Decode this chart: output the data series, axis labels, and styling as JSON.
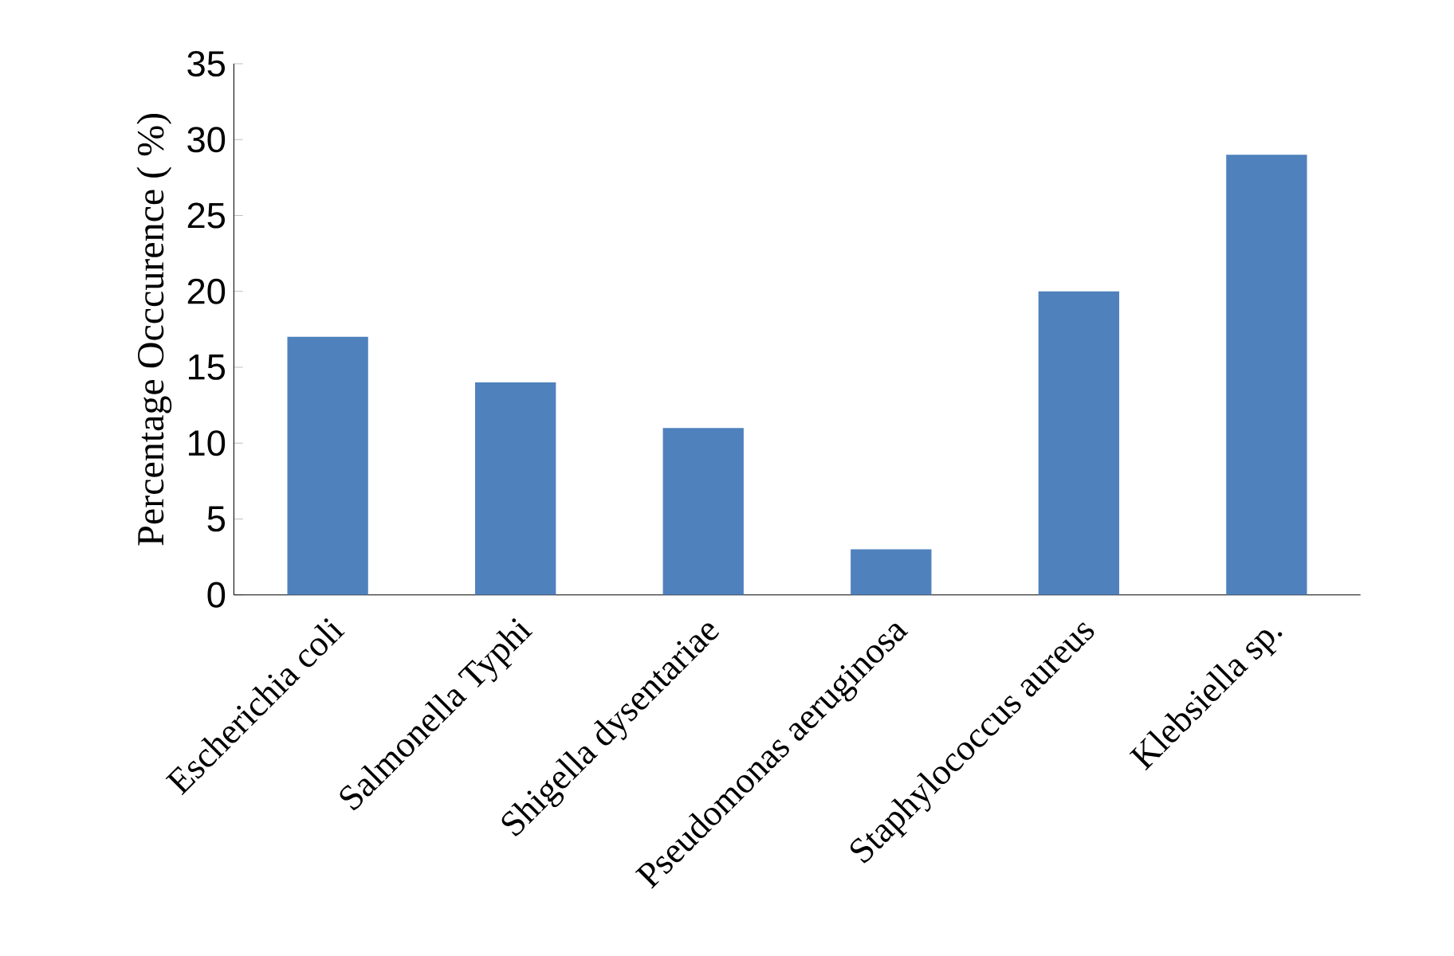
{
  "chart_data": {
    "type": "bar",
    "ylabel": "Percentage Occcurence ( %)",
    "categories": [
      "Escherichia coli",
      "Salmonella Typhi",
      "Shigella dysentariae",
      "Pseudomonas aeruginosa",
      "Staphylococcus aureus",
      "Klebsiella sp."
    ],
    "values": [
      17,
      14,
      11,
      3,
      20,
      29
    ],
    "color": "#4f81bd",
    "ylim": [
      0,
      35
    ],
    "yticks": [
      0,
      5,
      10,
      15,
      20,
      25,
      30,
      35
    ],
    "grid": false
  }
}
